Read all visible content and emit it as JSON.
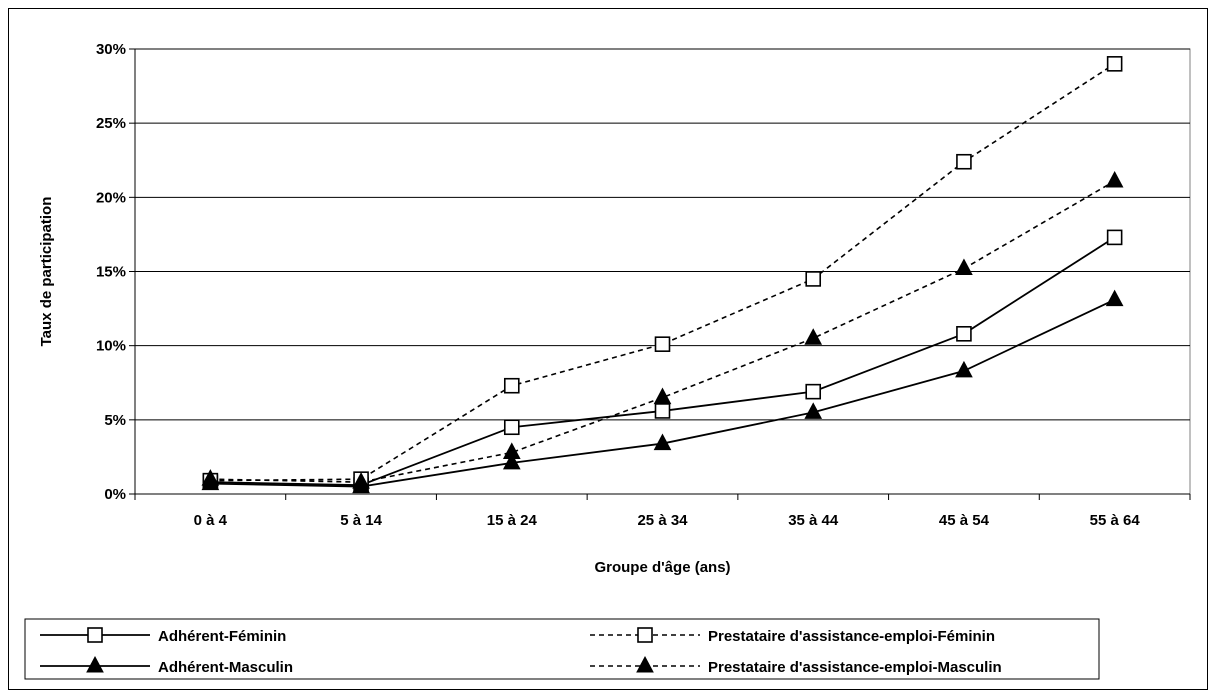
{
  "chart_data": {
    "type": "line",
    "title": "",
    "xlabel": "Groupe d'âge (ans)",
    "ylabel": "Taux de participation",
    "categories": [
      "0 à 4",
      "5 à 14",
      "15 à 24",
      "25 à 34",
      "35 à 44",
      "45 à 54",
      "55 à 64"
    ],
    "ylim": [
      0,
      30
    ],
    "y_unit": "%",
    "y_ticks": [
      "0%",
      "5%",
      "10%",
      "15%",
      "20%",
      "25%",
      "30%"
    ],
    "grid": "horizontal",
    "legend_position": "bottom",
    "series": [
      {
        "name": "Adhérent-Féminin",
        "values": [
          0.8,
          0.6,
          4.5,
          5.6,
          6.9,
          10.8,
          17.3
        ],
        "marker": "square-open",
        "line_style": "solid",
        "color": "#000000"
      },
      {
        "name": "Prestataire d'assistance-emploi-Féminin",
        "values": [
          0.9,
          1.0,
          7.3,
          10.1,
          14.5,
          22.4,
          29.0
        ],
        "marker": "square-open",
        "line_style": "dashed",
        "color": "#000000"
      },
      {
        "name": "Adhérent-Masculin",
        "values": [
          0.7,
          0.5,
          2.1,
          3.4,
          5.5,
          8.3,
          13.1
        ],
        "marker": "triangle-filled",
        "line_style": "solid",
        "color": "#000000"
      },
      {
        "name": "Prestataire d'assistance-emploi-Masculin",
        "values": [
          1.0,
          0.8,
          2.8,
          6.5,
          10.5,
          15.2,
          21.1
        ],
        "marker": "triangle-filled",
        "line_style": "dashed",
        "color": "#000000"
      }
    ]
  }
}
